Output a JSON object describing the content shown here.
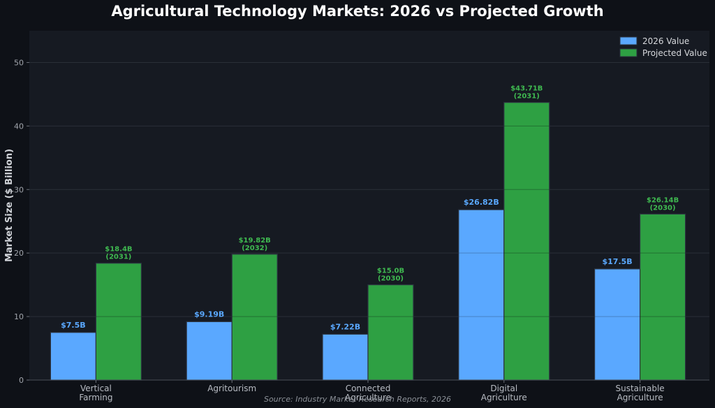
{
  "chart_data": {
    "type": "bar",
    "title": "Agricultural Technology Markets: 2026 vs Projected Growth",
    "ylabel": "Market Size ($ Billion)",
    "xlabel": "",
    "ylim": [
      0,
      55
    ],
    "yticks": [
      0,
      10,
      20,
      30,
      40,
      50
    ],
    "grid": true,
    "legend_position": "top-right",
    "categories": [
      [
        "Vertical",
        "Farming"
      ],
      [
        "Agritourism"
      ],
      [
        "Connected",
        "Agriculture"
      ],
      [
        "Digital",
        "Agriculture"
      ],
      [
        "Sustainable",
        "Agriculture"
      ]
    ],
    "series": [
      {
        "name": "2026 Value",
        "color": "#5aa8ff",
        "values": [
          7.5,
          9.19,
          7.22,
          26.82,
          17.5
        ],
        "labels": [
          "$7.5B",
          "$9.19B",
          "$7.22B",
          "$26.82B",
          "$17.5B"
        ]
      },
      {
        "name": "Projected Value",
        "color": "#2ea043",
        "values": [
          18.4,
          19.82,
          15.0,
          43.71,
          26.14
        ],
        "labels": [
          "$18.4B",
          "$19.82B",
          "$15.0B",
          "$43.71B",
          "$26.14B"
        ],
        "years": [
          "(2031)",
          "(2032)",
          "(2030)",
          "(2031)",
          "(2030)"
        ]
      }
    ],
    "source": "Source: Industry Market Research Reports, 2026"
  },
  "colors": {
    "background": "#0e1117",
    "plot_background": "#161a22",
    "grid": "#2a2f38",
    "series_a_label": "#5aa8ff",
    "series_b_label": "#3fb950"
  }
}
